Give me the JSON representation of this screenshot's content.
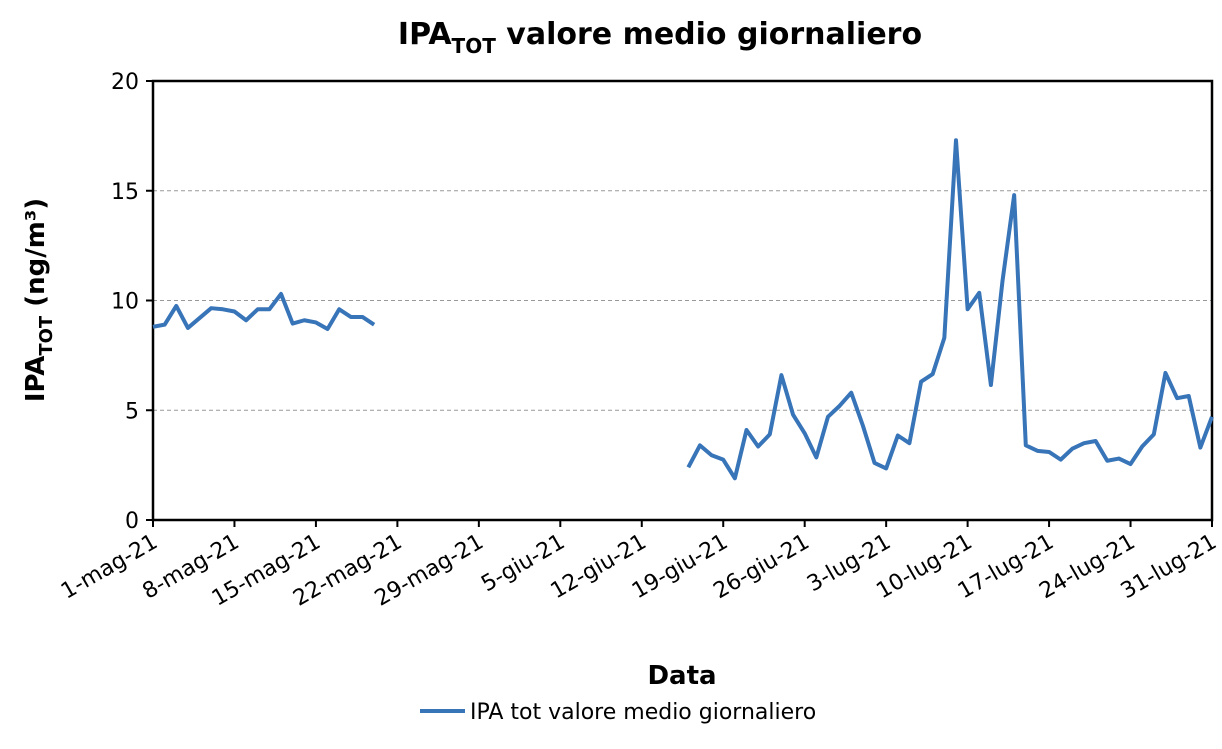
{
  "chart_data": {
    "type": "line",
    "title": [
      "IPA",
      "TOT",
      " valore medio giornaliero"
    ],
    "xlabel": "Data",
    "ylabel": [
      "IPA",
      "TOT",
      " (ng/m³)"
    ],
    "x": [
      "2021-05-01",
      "2021-05-02",
      "2021-05-03",
      "2021-05-04",
      "2021-05-05",
      "2021-05-06",
      "2021-05-07",
      "2021-05-08",
      "2021-05-09",
      "2021-05-10",
      "2021-05-11",
      "2021-05-12",
      "2021-05-13",
      "2021-05-14",
      "2021-05-15",
      "2021-05-16",
      "2021-05-17",
      "2021-05-18",
      "2021-05-19",
      "2021-05-20",
      "2021-05-21",
      "2021-06-16",
      "2021-06-17",
      "2021-06-18",
      "2021-06-19",
      "2021-06-20",
      "2021-06-21",
      "2021-06-22",
      "2021-06-23",
      "2021-06-24",
      "2021-06-25",
      "2021-06-26",
      "2021-06-27",
      "2021-06-28",
      "2021-06-29",
      "2021-06-30",
      "2021-07-01",
      "2021-07-02",
      "2021-07-03",
      "2021-07-04",
      "2021-07-05",
      "2021-07-06",
      "2021-07-07",
      "2021-07-08",
      "2021-07-09",
      "2021-07-10",
      "2021-07-11",
      "2021-07-12",
      "2021-07-13",
      "2021-07-14",
      "2021-07-15",
      "2021-07-16",
      "2021-07-17",
      "2021-07-18",
      "2021-07-19",
      "2021-07-20",
      "2021-07-21",
      "2021-07-22",
      "2021-07-23",
      "2021-07-24",
      "2021-07-25",
      "2021-07-26",
      "2021-07-27",
      "2021-07-28",
      "2021-07-29",
      "2021-07-30",
      "2021-07-31"
    ],
    "series": [
      {
        "name": "IPA tot valore medio giornaliero",
        "color": "#3874b8",
        "values": [
          8.8,
          8.9,
          9.75,
          8.75,
          9.2,
          9.65,
          9.6,
          9.5,
          9.1,
          9.6,
          9.6,
          10.3,
          8.95,
          9.1,
          9.0,
          8.7,
          9.6,
          9.25,
          9.25,
          8.9,
          null,
          2.4,
          3.4,
          2.95,
          2.75,
          1.9,
          4.1,
          3.35,
          3.9,
          6.6,
          4.8,
          3.95,
          2.85,
          4.7,
          5.2,
          5.8,
          4.3,
          2.6,
          2.35,
          3.85,
          3.5,
          6.3,
          6.65,
          8.3,
          17.3,
          9.6,
          10.35,
          6.15,
          10.9,
          14.8,
          3.4,
          3.15,
          3.1,
          2.75,
          3.25,
          3.5,
          3.6,
          2.7,
          2.8,
          2.55,
          3.35,
          3.9,
          6.7,
          5.55,
          5.65,
          3.3,
          4.7
        ]
      }
    ],
    "xlim": [
      "2021-05-01",
      "2021-07-31"
    ],
    "xticks": [
      {
        "value": "2021-05-01",
        "label": "1-mag-21"
      },
      {
        "value": "2021-05-08",
        "label": "8-mag-21"
      },
      {
        "value": "2021-05-15",
        "label": "15-mag-21"
      },
      {
        "value": "2021-05-22",
        "label": "22-mag-21"
      },
      {
        "value": "2021-05-29",
        "label": "29-mag-21"
      },
      {
        "value": "2021-06-05",
        "label": "5-giu-21"
      },
      {
        "value": "2021-06-12",
        "label": "12-giu-21"
      },
      {
        "value": "2021-06-19",
        "label": "19-giu-21"
      },
      {
        "value": "2021-06-26",
        "label": "26-giu-21"
      },
      {
        "value": "2021-07-03",
        "label": "3-lug-21"
      },
      {
        "value": "2021-07-10",
        "label": "10-lug-21"
      },
      {
        "value": "2021-07-17",
        "label": "17-lug-21"
      },
      {
        "value": "2021-07-24",
        "label": "24-lug-21"
      },
      {
        "value": "2021-07-31",
        "label": "31-lug-21"
      }
    ],
    "ylim": [
      0,
      20
    ],
    "yticks": [
      0,
      5,
      10,
      15,
      20
    ],
    "grid": true,
    "legend": "bottom"
  }
}
